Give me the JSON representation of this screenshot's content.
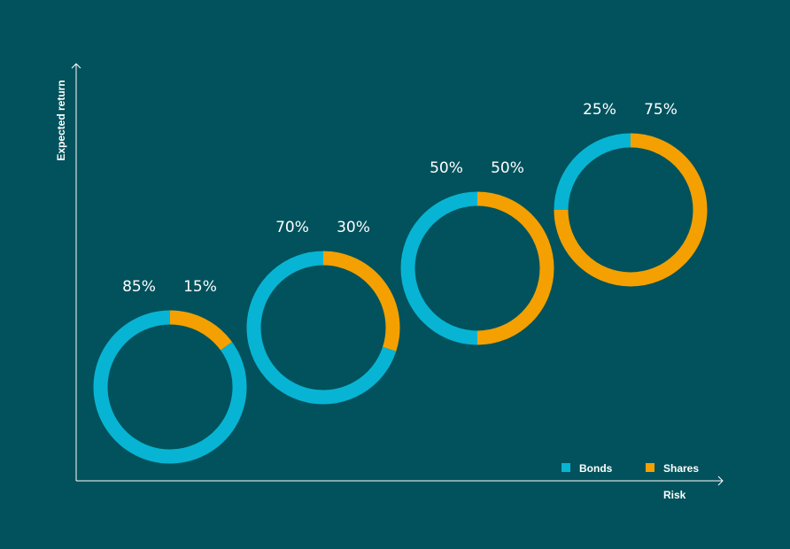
{
  "colors": {
    "background": "#01525c",
    "bonds": "#08b4d3",
    "shares": "#f4a000",
    "axis": "#ffffff",
    "text": "#ffffff"
  },
  "chart_data": {
    "type": "donut",
    "title": "",
    "xlabel": "Risk",
    "ylabel": "Expected return",
    "legend_position": "bottom-right",
    "series_names": [
      "Bonds",
      "Shares"
    ],
    "portfolios": [
      {
        "bonds": 85,
        "shares": 15,
        "bonds_label": "85%",
        "shares_label": "15%"
      },
      {
        "bonds": 70,
        "shares": 30,
        "bonds_label": "70%",
        "shares_label": "30%"
      },
      {
        "bonds": 50,
        "shares": 50,
        "bonds_label": "50%",
        "shares_label": "50%"
      },
      {
        "bonds": 25,
        "shares": 75,
        "bonds_label": "25%",
        "shares_label": "75%"
      }
    ]
  }
}
